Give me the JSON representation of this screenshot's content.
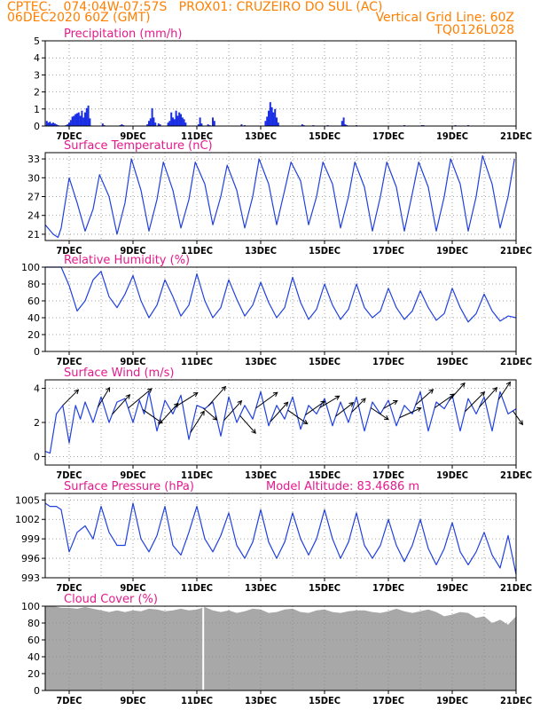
{
  "header": {
    "line1": "CPTEC:   074:04W-07:57S   PROX01: CRUZEIRO DO SUL (AC)",
    "line2_left": "06DEC2020 60Z (GMT)",
    "line2_right": "Vertical Grid Line: 60Z",
    "line3_right": "TQ0126L028",
    "color": "#ff7f00"
  },
  "style": {
    "title_color": "#e6198c",
    "line_color": "#2040e0",
    "bar_color": "#1a2ee6",
    "cloud_color": "#a8a8a8",
    "arrow_color": "#000000"
  },
  "chart_data": [
    {
      "type": "bar",
      "title": "Precipitation (mm/h)",
      "ylim": [
        0,
        5
      ],
      "yticks": [
        "0",
        "1",
        "2",
        "3",
        "4",
        "5"
      ],
      "xticks": [
        "7DEC",
        "9DEC",
        "11DEC",
        "13DEC",
        "15DEC",
        "17DEC",
        "19DEC",
        "21DEC"
      ],
      "xlim_days": [
        6.25,
        21.0
      ],
      "grid": "dotted",
      "day": [
        6.3,
        6.35,
        6.4,
        6.45,
        6.5,
        6.55,
        6.6,
        6.65,
        6.9,
        6.95,
        7.0,
        7.05,
        7.1,
        7.15,
        7.2,
        7.25,
        7.3,
        7.35,
        7.4,
        7.45,
        7.5,
        7.55,
        7.6,
        7.65,
        8.05,
        8.1,
        8.6,
        8.65,
        8.7,
        9.45,
        9.5,
        9.55,
        9.6,
        9.65,
        9.7,
        9.8,
        9.85,
        10.1,
        10.15,
        10.2,
        10.25,
        10.3,
        10.35,
        10.4,
        10.45,
        10.5,
        10.55,
        10.6,
        10.65,
        11.05,
        11.1,
        11.15,
        11.35,
        11.4,
        11.5,
        11.55,
        12.4,
        12.5,
        13.15,
        13.2,
        13.25,
        13.3,
        13.35,
        13.4,
        13.45,
        13.5,
        13.55,
        14.3,
        14.35,
        14.65,
        15.1,
        15.55,
        15.6,
        15.65,
        15.7,
        16.0,
        17.5,
        18.05,
        18.1,
        19.1,
        19.5
      ],
      "values": [
        0.3,
        0.2,
        0.25,
        0.15,
        0.2,
        0.15,
        0.1,
        0.05,
        0.05,
        0.1,
        0.2,
        0.35,
        0.55,
        0.6,
        0.7,
        0.75,
        0.8,
        0.6,
        0.9,
        0.5,
        0.8,
        1.05,
        1.2,
        0.45,
        0.15,
        0.05,
        0.05,
        0.1,
        0.05,
        0.1,
        0.3,
        0.45,
        1.05,
        0.5,
        0.2,
        0.15,
        0.1,
        0.2,
        0.3,
        0.8,
        0.5,
        0.4,
        0.9,
        0.6,
        0.8,
        0.7,
        0.5,
        0.4,
        0.2,
        0.1,
        0.5,
        0.15,
        0.1,
        0.05,
        0.5,
        0.3,
        0.1,
        0.05,
        0.3,
        0.55,
        0.9,
        1.4,
        1.1,
        0.8,
        1.0,
        0.5,
        0.2,
        0.1,
        0.05,
        0.05,
        0.05,
        0.3,
        0.5,
        0.1,
        0.05,
        0.05,
        0.05,
        0.05,
        0.05,
        0.05,
        0.05
      ]
    },
    {
      "type": "line",
      "title": "Surface Temperature (nC)",
      "ylim": [
        20,
        34
      ],
      "yticks": [
        "21",
        "24",
        "27",
        "30",
        "33"
      ],
      "xticks": [
        "7DEC",
        "9DEC",
        "11DEC",
        "13DEC",
        "15DEC",
        "17DEC",
        "19DEC",
        "21DEC"
      ],
      "xlim_days": [
        6.25,
        21.0
      ],
      "grid": "dotted",
      "day": [
        6.25,
        6.5,
        6.65,
        6.75,
        7.0,
        7.25,
        7.5,
        7.75,
        7.95,
        8.25,
        8.5,
        8.75,
        8.95,
        9.25,
        9.5,
        9.75,
        9.95,
        10.25,
        10.5,
        10.75,
        10.95,
        11.25,
        11.5,
        11.75,
        11.95,
        12.25,
        12.5,
        12.75,
        12.95,
        13.25,
        13.5,
        13.75,
        13.95,
        14.25,
        14.5,
        14.75,
        14.95,
        15.25,
        15.5,
        15.75,
        15.95,
        16.25,
        16.5,
        16.75,
        16.95,
        17.25,
        17.5,
        17.75,
        17.95,
        18.25,
        18.5,
        18.75,
        18.95,
        19.25,
        19.5,
        19.75,
        19.95,
        20.25,
        20.5,
        20.75,
        20.95
      ],
      "values": [
        22.5,
        21.0,
        20.5,
        22.0,
        30.0,
        26.0,
        21.5,
        25.0,
        30.5,
        27.0,
        21.0,
        26.0,
        33.0,
        28.0,
        21.5,
        26.5,
        32.5,
        28.0,
        22.0,
        26.5,
        32.5,
        29.0,
        22.5,
        27.0,
        32.0,
        28.0,
        22.0,
        27.0,
        33.0,
        29.0,
        22.5,
        28.0,
        32.5,
        29.5,
        22.5,
        27.0,
        32.5,
        29.0,
        22.0,
        27.0,
        32.5,
        28.5,
        21.5,
        27.0,
        32.5,
        28.5,
        21.5,
        27.5,
        32.5,
        28.5,
        21.5,
        27.0,
        33.0,
        29.0,
        21.5,
        27.0,
        33.5,
        29.0,
        22.0,
        27.0,
        33.0
      ]
    },
    {
      "type": "line",
      "title": "Relative Humidity (%)",
      "ylim": [
        0,
        100
      ],
      "yticks": [
        "0",
        "20",
        "40",
        "60",
        "80",
        "100"
      ],
      "xticks": [
        "7DEC",
        "9DEC",
        "11DEC",
        "13DEC",
        "15DEC",
        "17DEC",
        "19DEC",
        "21DEC"
      ],
      "xlim_days": [
        6.25,
        21.0
      ],
      "grid": "dotted",
      "day": [
        6.25,
        6.5,
        6.75,
        7.0,
        7.25,
        7.5,
        7.75,
        8.0,
        8.25,
        8.5,
        8.75,
        9.0,
        9.25,
        9.5,
        9.75,
        10.0,
        10.25,
        10.5,
        10.75,
        11.0,
        11.25,
        11.5,
        11.75,
        12.0,
        12.25,
        12.5,
        12.75,
        13.0,
        13.25,
        13.5,
        13.75,
        14.0,
        14.25,
        14.5,
        14.75,
        15.0,
        15.25,
        15.5,
        15.75,
        16.0,
        16.25,
        16.5,
        16.75,
        17.0,
        17.25,
        17.5,
        17.75,
        18.0,
        18.25,
        18.5,
        18.75,
        19.0,
        19.25,
        19.5,
        19.75,
        20.0,
        20.25,
        20.5,
        20.75,
        21.0
      ],
      "values": [
        100,
        100,
        100,
        78,
        48,
        60,
        85,
        95,
        65,
        52,
        68,
        90,
        60,
        40,
        55,
        85,
        65,
        42,
        55,
        92,
        60,
        40,
        52,
        85,
        62,
        42,
        55,
        82,
        58,
        40,
        52,
        88,
        58,
        38,
        50,
        80,
        55,
        38,
        50,
        80,
        52,
        40,
        48,
        75,
        52,
        38,
        48,
        72,
        52,
        37,
        45,
        75,
        52,
        35,
        45,
        68,
        48,
        36,
        42,
        40
      ]
    },
    {
      "type": "line",
      "title": "Surface Wind (m/s)",
      "ylim": [
        -0.5,
        4.5
      ],
      "yticks": [
        "0",
        "2",
        "4"
      ],
      "xticks": [
        "7DEC",
        "9DEC",
        "11DEC",
        "13DEC",
        "15DEC",
        "17DEC",
        "19DEC",
        "21DEC"
      ],
      "xlim_days": [
        6.25,
        21.0
      ],
      "grid": "dotted",
      "day": [
        6.25,
        6.4,
        6.6,
        6.8,
        7.0,
        7.2,
        7.35,
        7.5,
        7.75,
        8.0,
        8.25,
        8.5,
        8.75,
        9.0,
        9.2,
        9.35,
        9.5,
        9.75,
        10.0,
        10.25,
        10.5,
        10.75,
        11.0,
        11.25,
        11.5,
        11.75,
        12.0,
        12.25,
        12.5,
        12.75,
        13.0,
        13.25,
        13.5,
        13.75,
        14.0,
        14.25,
        14.5,
        14.75,
        15.0,
        15.25,
        15.5,
        15.75,
        16.0,
        16.25,
        16.5,
        16.75,
        17.0,
        17.25,
        17.5,
        17.75,
        18.0,
        18.25,
        18.5,
        18.75,
        19.0,
        19.25,
        19.5,
        19.75,
        20.0,
        20.25,
        20.5,
        20.75,
        21.0
      ],
      "values": [
        0.3,
        0.2,
        2.5,
        3.0,
        0.8,
        3.0,
        2.2,
        3.2,
        2.0,
        3.5,
        2.0,
        3.2,
        3.4,
        2.0,
        3.3,
        2.5,
        3.8,
        1.5,
        3.3,
        2.5,
        3.6,
        1.0,
        3.0,
        2.8,
        3.2,
        1.2,
        3.5,
        2.0,
        3.0,
        2.2,
        3.8,
        1.8,
        3.0,
        2.2,
        3.5,
        1.6,
        3.0,
        2.5,
        3.4,
        1.8,
        3.2,
        2.0,
        3.5,
        1.5,
        3.2,
        2.5,
        3.3,
        1.8,
        3.0,
        2.5,
        3.8,
        1.5,
        3.2,
        2.8,
        3.6,
        1.5,
        3.4,
        2.5,
        3.5,
        1.5,
        3.8,
        2.5,
        2.8
      ],
      "arrows": [
        {
          "day": 6.8,
          "u": 1.6,
          "v": 1.6
        },
        {
          "day": 7.9,
          "u": 1.2,
          "v": 2.0
        },
        {
          "day": 8.35,
          "u": 1.8,
          "v": 2.0
        },
        {
          "day": 8.85,
          "u": 2.4,
          "v": 2.0
        },
        {
          "day": 9.3,
          "u": 2.0,
          "v": -1.4
        },
        {
          "day": 9.8,
          "u": 2.0,
          "v": 2.2
        },
        {
          "day": 10.35,
          "u": 2.2,
          "v": 1.4
        },
        {
          "day": 10.8,
          "u": 1.4,
          "v": 2.2
        },
        {
          "day": 11.2,
          "u": 1.4,
          "v": -1.2
        },
        {
          "day": 11.35,
          "u": 1.8,
          "v": 2.0
        },
        {
          "day": 11.85,
          "u": 1.8,
          "v": 2.0
        },
        {
          "day": 12.35,
          "u": 1.6,
          "v": -1.8
        },
        {
          "day": 12.85,
          "u": 2.2,
          "v": 1.6
        },
        {
          "day": 13.3,
          "u": 1.8,
          "v": 2.0
        },
        {
          "day": 13.85,
          "u": 2.0,
          "v": -1.4
        },
        {
          "day": 14.4,
          "u": 2.0,
          "v": 1.4
        },
        {
          "day": 14.85,
          "u": 2.0,
          "v": 1.2
        },
        {
          "day": 15.35,
          "u": 1.8,
          "v": 1.4
        },
        {
          "day": 15.85,
          "u": 1.4,
          "v": 1.4
        },
        {
          "day": 16.45,
          "u": 1.8,
          "v": -1.2
        },
        {
          "day": 16.85,
          "u": 1.4,
          "v": 0.8
        },
        {
          "day": 17.35,
          "u": 2.2,
          "v": 1.0
        },
        {
          "day": 17.85,
          "u": 1.8,
          "v": 1.6
        },
        {
          "day": 18.45,
          "u": 2.0,
          "v": 1.4
        },
        {
          "day": 18.9,
          "u": 1.6,
          "v": 1.8
        },
        {
          "day": 19.4,
          "u": 2.0,
          "v": 2.0
        },
        {
          "day": 19.85,
          "u": 1.8,
          "v": 2.0
        },
        {
          "day": 20.45,
          "u": 1.2,
          "v": 1.8
        },
        {
          "day": 20.9,
          "u": 1.0,
          "v": -1.4
        }
      ]
    },
    {
      "type": "line",
      "title": "Surface Pressure (hPa)",
      "annotation": "Model Altitude: 83.4686 m",
      "ylim": [
        993,
        1006
      ],
      "yticks": [
        "993",
        "996",
        "999",
        "1002",
        "1005"
      ],
      "xticks": [
        "7DEC",
        "9DEC",
        "11DEC",
        "13DEC",
        "15DEC",
        "17DEC",
        "19DEC",
        "21DEC"
      ],
      "xlim_days": [
        6.25,
        21.0
      ],
      "grid": "dotted",
      "day": [
        6.25,
        6.4,
        6.6,
        6.75,
        7.0,
        7.25,
        7.5,
        7.75,
        8.0,
        8.25,
        8.5,
        8.75,
        9.0,
        9.25,
        9.5,
        9.75,
        10.0,
        10.25,
        10.5,
        10.75,
        11.0,
        11.25,
        11.5,
        11.75,
        12.0,
        12.25,
        12.5,
        12.75,
        13.0,
        13.25,
        13.5,
        13.75,
        14.0,
        14.25,
        14.5,
        14.75,
        15.0,
        15.25,
        15.5,
        15.75,
        16.0,
        16.25,
        16.5,
        16.75,
        17.0,
        17.25,
        17.5,
        17.75,
        18.0,
        18.25,
        18.5,
        18.75,
        19.0,
        19.25,
        19.5,
        19.75,
        20.0,
        20.25,
        20.5,
        20.75,
        21.0
      ],
      "values": [
        1004.5,
        1004.0,
        1004.0,
        1003.5,
        997.0,
        1000.0,
        1001.0,
        999.0,
        1004.0,
        1000.0,
        998.0,
        998.0,
        1004.5,
        999.0,
        997.0,
        999.5,
        1004.0,
        998.0,
        996.5,
        1000.0,
        1004.0,
        999.0,
        997.0,
        999.5,
        1003.0,
        998.0,
        996.0,
        998.5,
        1003.5,
        998.5,
        996.0,
        998.5,
        1003.0,
        999.0,
        996.5,
        999.0,
        1003.5,
        999.0,
        996.0,
        998.5,
        1003.0,
        998.0,
        996.0,
        998.0,
        1002.0,
        998.0,
        995.5,
        998.0,
        1002.0,
        997.5,
        995.0,
        997.5,
        1001.5,
        997.0,
        995.0,
        997.0,
        1000.0,
        996.5,
        994.5,
        999.5,
        993.5
      ]
    },
    {
      "type": "area",
      "title": "Cloud Cover (%)",
      "ylim": [
        0,
        100
      ],
      "yticks": [
        "0",
        "20",
        "40",
        "60",
        "80",
        "100"
      ],
      "xticks": [
        "7DEC",
        "9DEC",
        "11DEC",
        "13DEC",
        "15DEC",
        "17DEC",
        "19DEC",
        "21DEC"
      ],
      "xlim_days": [
        6.25,
        21.0
      ],
      "grid": "dotted",
      "gap_day": 11.2,
      "day": [
        6.25,
        6.5,
        6.75,
        7.0,
        7.25,
        7.5,
        7.75,
        8.0,
        8.25,
        8.5,
        8.75,
        9.0,
        9.25,
        9.5,
        9.75,
        10.0,
        10.25,
        10.5,
        10.75,
        11.0,
        11.25,
        11.5,
        11.75,
        12.0,
        12.25,
        12.5,
        12.75,
        13.0,
        13.25,
        13.5,
        13.75,
        14.0,
        14.25,
        14.5,
        14.75,
        15.0,
        15.25,
        15.5,
        15.75,
        16.0,
        16.25,
        16.5,
        16.75,
        17.0,
        17.25,
        17.5,
        17.75,
        18.0,
        18.25,
        18.5,
        18.75,
        19.0,
        19.25,
        19.5,
        19.75,
        20.0,
        20.25,
        20.5,
        20.75,
        21.0
      ],
      "values": [
        100,
        100,
        98,
        98,
        97,
        99,
        97,
        95,
        93,
        95,
        93,
        95,
        94,
        97,
        96,
        94,
        95,
        97,
        95,
        96,
        99,
        95,
        93,
        95,
        92,
        94,
        97,
        96,
        92,
        93,
        96,
        97,
        93,
        92,
        95,
        96,
        93,
        92,
        94,
        95,
        95,
        93,
        92,
        94,
        97,
        94,
        92,
        94,
        96,
        93,
        88,
        90,
        93,
        92,
        86,
        88,
        80,
        84,
        78,
        88
      ]
    }
  ]
}
